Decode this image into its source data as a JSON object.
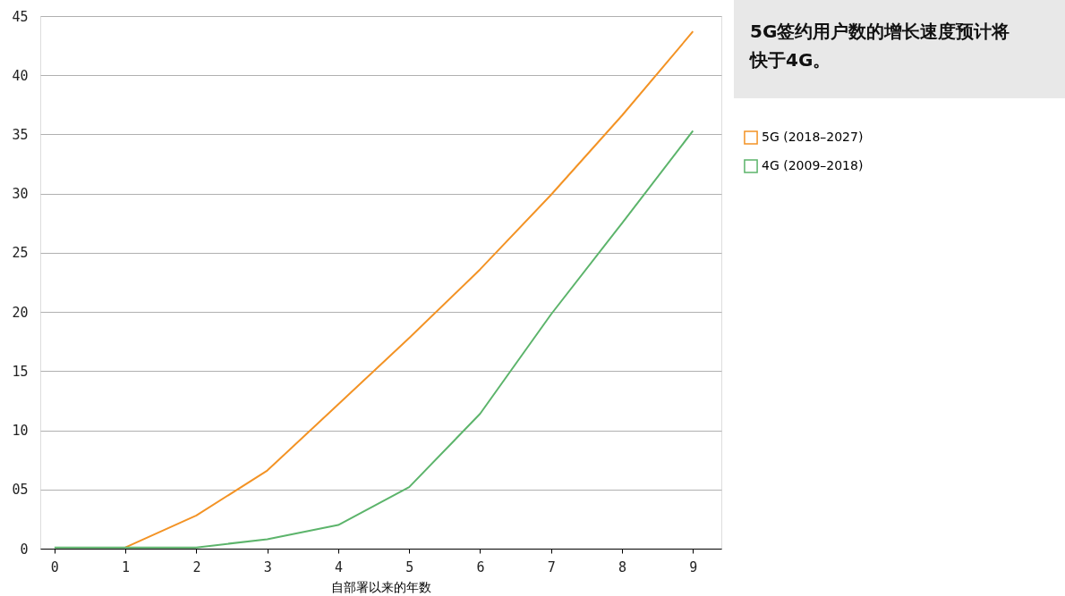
{
  "chart_data": {
    "type": "line",
    "title": "5G签约用户数的增长速度预计将快于4G。",
    "xlabel": "自部署以来的年数",
    "x": [
      0,
      1,
      2,
      3,
      4,
      5,
      6,
      7,
      8,
      9
    ],
    "series": [
      {
        "name": "5G (2018–2027)",
        "color": "#f39325",
        "values": [
          null,
          0.1,
          2.8,
          6.6,
          12.2,
          17.8,
          23.6,
          29.9,
          36.6,
          43.7
        ]
      },
      {
        "name": "4G (2009–2018)",
        "color": "#5cb46b",
        "values": [
          0.1,
          0.1,
          0.1,
          0.8,
          2.0,
          5.2,
          11.4,
          19.8,
          27.5,
          35.3
        ]
      }
    ],
    "xlim": [
      -0.2,
      9.4
    ],
    "xticks": [
      0,
      1,
      2,
      3,
      4,
      5,
      6,
      7,
      8,
      9
    ],
    "ylim": [
      0,
      45
    ],
    "yticks": [
      0,
      {
        "value": 5,
        "label": "05"
      },
      10,
      15,
      20,
      25,
      30,
      35,
      40,
      45
    ],
    "grid": "y",
    "legend": "right",
    "marker": "none",
    "line_style": "solid"
  }
}
